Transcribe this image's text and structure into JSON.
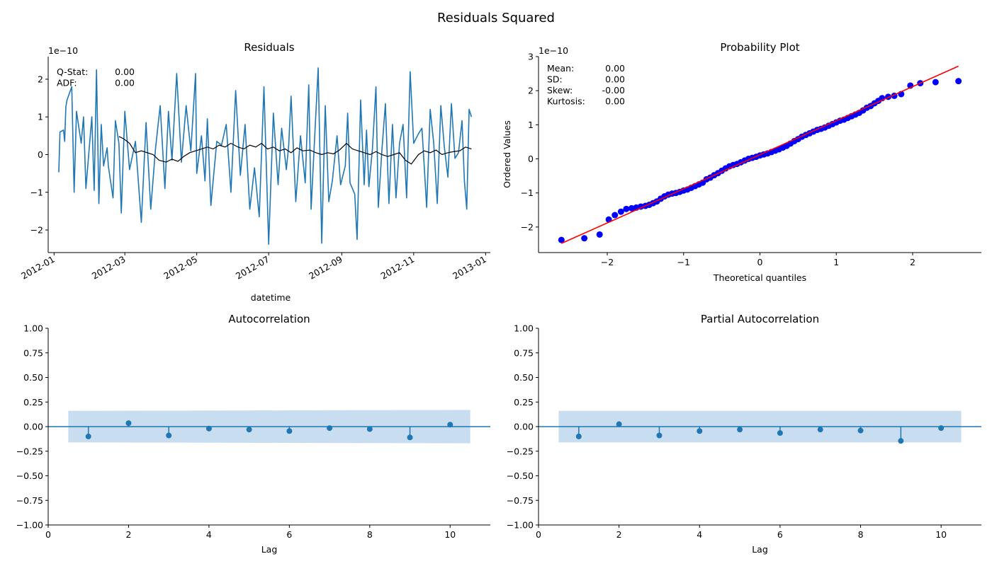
{
  "figure": {
    "title": "Residuals Squared"
  },
  "colors": {
    "residual_line": "#1f77b4",
    "rolling_mean": "#000000",
    "qq_points": "#0000ff",
    "qq_fit_line": "#ff0000",
    "stem": "#1f77b4",
    "confidence_band": "#c6dbef"
  },
  "chart_data": [
    {
      "id": "residuals",
      "type": "line",
      "title": "Residuals",
      "xlabel": "datetime",
      "ylabel": "",
      "scale_label": "1e−10",
      "x_tick_labels": [
        "2012-01",
        "2012-03",
        "2012-05",
        "2012-07",
        "2012-09",
        "2012-11",
        "2013-01"
      ],
      "x_tick_dates": [
        "2012-01-01",
        "2012-03-01",
        "2012-05-01",
        "2012-07-01",
        "2012-09-01",
        "2012-11-01",
        "2013-01-01"
      ],
      "xlim": [
        "2011-12-27",
        "2013-01-05"
      ],
      "yticks": [
        -2,
        -1,
        0,
        1,
        2
      ],
      "ylim": [
        -2.6,
        2.6
      ],
      "grid": false,
      "stats_text": [
        {
          "label": "Q-Stat:",
          "value": "0.00"
        },
        {
          "label": "ADF:",
          "value": "0.00"
        }
      ],
      "series": [
        {
          "kind": "residuals",
          "x": [
            "2012-01-05",
            "2012-01-06",
            "2012-01-09",
            "2012-01-10",
            "2012-01-11",
            "2012-01-12",
            "2012-01-16",
            "2012-01-18",
            "2012-01-20",
            "2012-01-24",
            "2012-01-26",
            "2012-01-28",
            "2012-02-02",
            "2012-02-04",
            "2012-02-06",
            "2012-02-08",
            "2012-02-10",
            "2012-02-12",
            "2012-02-15",
            "2012-02-16",
            "2012-02-20",
            "2012-02-22",
            "2012-02-25",
            "2012-02-27",
            "2012-03-01",
            "2012-03-05",
            "2012-03-10",
            "2012-03-15",
            "2012-03-19",
            "2012-03-23",
            "2012-03-27",
            "2012-03-31",
            "2012-04-04",
            "2012-04-07",
            "2012-04-10",
            "2012-04-14",
            "2012-04-18",
            "2012-04-22",
            "2012-04-26",
            "2012-04-30",
            "2012-05-01",
            "2012-05-05",
            "2012-05-08",
            "2012-05-10",
            "2012-05-13",
            "2012-05-18",
            "2012-05-22",
            "2012-05-26",
            "2012-05-30",
            "2012-06-03",
            "2012-06-07",
            "2012-06-11",
            "2012-06-15",
            "2012-06-19",
            "2012-06-23",
            "2012-06-27",
            "2012-07-01",
            "2012-07-05",
            "2012-07-09",
            "2012-07-12",
            "2012-07-16",
            "2012-07-18",
            "2012-07-20",
            "2012-07-24",
            "2012-07-28",
            "2012-08-01",
            "2012-08-04",
            "2012-08-06",
            "2012-08-09",
            "2012-08-12",
            "2012-08-15",
            "2012-08-18",
            "2012-08-21",
            "2012-08-24",
            "2012-08-28",
            "2012-08-31",
            "2012-09-04",
            "2012-09-06",
            "2012-09-08",
            "2012-09-12",
            "2012-09-14",
            "2012-09-17",
            "2012-09-20",
            "2012-09-22",
            "2012-09-24",
            "2012-09-27",
            "2012-09-30",
            "2012-10-02",
            "2012-10-05",
            "2012-10-08",
            "2012-10-11",
            "2012-10-14",
            "2012-10-17",
            "2012-10-20",
            "2012-10-23",
            "2012-10-26",
            "2012-10-29",
            "2012-11-01",
            "2012-11-05",
            "2012-11-08",
            "2012-11-12",
            "2012-11-15",
            "2012-11-18",
            "2012-11-21",
            "2012-11-24",
            "2012-11-27",
            "2012-11-30",
            "2012-12-03",
            "2012-12-06",
            "2012-12-09",
            "2012-12-12",
            "2012-12-14",
            "2012-12-16",
            "2012-12-18",
            "2012-12-20"
          ],
          "y": [
            -0.47,
            0.6,
            0.65,
            0.35,
            1.27,
            1.45,
            1.8,
            -1.0,
            1.15,
            0.3,
            1.0,
            -0.9,
            1.0,
            -0.95,
            2.25,
            -1.3,
            0.8,
            -0.3,
            0.18,
            -0.3,
            -1.15,
            0.9,
            0.3,
            -1.55,
            1.15,
            -0.4,
            0.35,
            -1.8,
            0.85,
            -1.45,
            0.15,
            1.3,
            -0.9,
            1.15,
            -0.15,
            2.15,
            -0.2,
            1.3,
            0.1,
            2.15,
            -0.5,
            0.5,
            -0.7,
            0.95,
            -1.35,
            0.35,
            0.25,
            0.8,
            -1.0,
            1.7,
            -0.55,
            0.8,
            -1.45,
            -0.35,
            -1.65,
            1.8,
            -2.38,
            1.1,
            -0.8,
            0.7,
            -0.4,
            0.25,
            1.55,
            -1.25,
            0.5,
            -0.75,
            1.85,
            -1.45,
            0.45,
            2.3,
            -2.35,
            1.3,
            -1.25,
            -0.7,
            0.5,
            -0.8,
            -0.3,
            1.1,
            -0.75,
            -1.05,
            -2.25,
            1.45,
            -0.8,
            0.65,
            -0.85,
            0.15,
            1.8,
            -1.4,
            0.1,
            1.35,
            -1.3,
            0.8,
            -1.15,
            0.3,
            0.8,
            -1.15,
            2.2,
            0.3,
            0.55,
            0.7,
            -1.4,
            1.2,
            0.3,
            -1.3,
            1.3,
            0.2,
            -0.6,
            1.35,
            -0.1,
            0.05,
            0.9,
            -0.7,
            -1.45,
            1.2,
            1.0
          ]
        },
        {
          "kind": "rolling_mean",
          "x": [
            "2012-02-25",
            "2012-02-29",
            "2012-03-05",
            "2012-03-10",
            "2012-03-15",
            "2012-03-20",
            "2012-03-25",
            "2012-03-30",
            "2012-04-05",
            "2012-04-10",
            "2012-04-15",
            "2012-04-20",
            "2012-04-25",
            "2012-04-30",
            "2012-05-05",
            "2012-05-10",
            "2012-05-15",
            "2012-05-20",
            "2012-05-25",
            "2012-05-30",
            "2012-06-05",
            "2012-06-10",
            "2012-06-15",
            "2012-06-20",
            "2012-06-25",
            "2012-06-30",
            "2012-07-05",
            "2012-07-10",
            "2012-07-15",
            "2012-07-20",
            "2012-07-25",
            "2012-07-30",
            "2012-08-05",
            "2012-08-10",
            "2012-08-15",
            "2012-08-20",
            "2012-08-25",
            "2012-08-30",
            "2012-09-05",
            "2012-09-10",
            "2012-09-15",
            "2012-09-20",
            "2012-09-25",
            "2012-09-30",
            "2012-10-05",
            "2012-10-10",
            "2012-10-15",
            "2012-10-20",
            "2012-10-25",
            "2012-10-30",
            "2012-11-05",
            "2012-11-10",
            "2012-11-15",
            "2012-11-20",
            "2012-11-25",
            "2012-11-30",
            "2012-12-05",
            "2012-12-10",
            "2012-12-15",
            "2012-12-20"
          ],
          "y": [
            0.48,
            0.42,
            0.3,
            0.05,
            0.1,
            0.05,
            0.0,
            -0.15,
            -0.2,
            -0.12,
            -0.18,
            -0.05,
            0.05,
            0.1,
            0.15,
            0.2,
            0.15,
            0.25,
            0.2,
            0.3,
            0.2,
            0.15,
            0.25,
            0.2,
            0.3,
            0.15,
            0.2,
            0.1,
            0.15,
            0.05,
            0.18,
            0.1,
            0.12,
            0.05,
            0.0,
            0.05,
            0.02,
            0.12,
            0.3,
            0.15,
            0.1,
            0.05,
            0.0,
            0.08,
            0.0,
            -0.05,
            0.0,
            0.05,
            -0.15,
            -0.25,
            0.0,
            0.1,
            0.05,
            0.12,
            0.0,
            0.05,
            0.08,
            0.1,
            0.2,
            0.15
          ]
        }
      ]
    },
    {
      "id": "probability_plot",
      "type": "scatter",
      "title": "Probability Plot",
      "xlabel": "Theoretical quantiles",
      "ylabel": "Ordered Values",
      "scale_label": "1e−10",
      "xticks": [
        -2,
        -1,
        0,
        1,
        2
      ],
      "xlim": [
        -2.9,
        2.9
      ],
      "yticks": [
        -2,
        -1,
        0,
        1,
        2,
        3
      ],
      "ylim": [
        -2.75,
        3.0
      ],
      "grid": false,
      "stats_text": [
        {
          "label": "Mean:",
          "value": "0.00"
        },
        {
          "label": "SD:",
          "value": "0.00"
        },
        {
          "label": "Skew:",
          "value": "-0.00"
        },
        {
          "label": "Kurtosis:",
          "value": "0.00"
        }
      ],
      "fit_line": {
        "slope": 1.0,
        "intercept": 0.12
      },
      "points": {
        "x": [
          -2.6,
          -2.3,
          -2.1,
          -1.98,
          -1.9,
          -1.82,
          -1.75,
          -1.68,
          -1.62,
          -1.56,
          -1.5,
          -1.45,
          -1.4,
          -1.35,
          -1.3,
          -1.25,
          -1.2,
          -1.15,
          -1.1,
          -1.05,
          -1.0,
          -0.95,
          -0.9,
          -0.85,
          -0.8,
          -0.75,
          -0.7,
          -0.65,
          -0.6,
          -0.55,
          -0.5,
          -0.45,
          -0.4,
          -0.35,
          -0.3,
          -0.25,
          -0.2,
          -0.15,
          -0.1,
          -0.05,
          0.0,
          0.05,
          0.1,
          0.15,
          0.2,
          0.25,
          0.3,
          0.35,
          0.4,
          0.45,
          0.5,
          0.55,
          0.6,
          0.65,
          0.7,
          0.75,
          0.8,
          0.85,
          0.9,
          0.95,
          1.0,
          1.05,
          1.1,
          1.15,
          1.2,
          1.25,
          1.3,
          1.35,
          1.4,
          1.45,
          1.5,
          1.55,
          1.6,
          1.68,
          1.76,
          1.85,
          1.97,
          2.1,
          2.3,
          2.6
        ],
        "y": [
          -2.38,
          -2.33,
          -2.22,
          -1.78,
          -1.65,
          -1.55,
          -1.47,
          -1.45,
          -1.43,
          -1.4,
          -1.38,
          -1.35,
          -1.3,
          -1.25,
          -1.17,
          -1.1,
          -1.05,
          -1.02,
          -1.0,
          -0.97,
          -0.93,
          -0.9,
          -0.85,
          -0.8,
          -0.75,
          -0.7,
          -0.6,
          -0.55,
          -0.48,
          -0.42,
          -0.35,
          -0.28,
          -0.22,
          -0.18,
          -0.15,
          -0.1,
          -0.05,
          0.0,
          0.03,
          0.06,
          0.1,
          0.13,
          0.16,
          0.2,
          0.24,
          0.28,
          0.33,
          0.38,
          0.45,
          0.52,
          0.58,
          0.65,
          0.7,
          0.75,
          0.8,
          0.85,
          0.88,
          0.92,
          0.97,
          1.02,
          1.07,
          1.12,
          1.15,
          1.2,
          1.25,
          1.3,
          1.35,
          1.42,
          1.5,
          1.55,
          1.63,
          1.7,
          1.78,
          1.82,
          1.85,
          1.9,
          2.15,
          2.22,
          2.25,
          2.28
        ]
      }
    },
    {
      "id": "acf",
      "type": "scatter",
      "title": "Autocorrelation",
      "xlabel": "Lag",
      "ylabel": "",
      "xticks": [
        0,
        2,
        4,
        6,
        8,
        10
      ],
      "xlim": [
        0,
        11
      ],
      "yticks": [
        -1.0,
        -0.75,
        -0.5,
        -0.25,
        0.0,
        0.25,
        0.5,
        0.75,
        1.0
      ],
      "ytick_labels": [
        "−1.00",
        "−0.75",
        "−0.50",
        "−0.25",
        "0.00",
        "0.25",
        "0.50",
        "0.75",
        "1.00"
      ],
      "ylim": [
        -1.0,
        1.0
      ],
      "grid": false,
      "confidence_band": {
        "x": [
          0.5,
          10.5
        ],
        "lower": [
          -0.16,
          -0.17
        ],
        "upper": [
          0.16,
          0.17
        ]
      },
      "lags": [
        1,
        2,
        3,
        4,
        5,
        6,
        7,
        8,
        9,
        10
      ],
      "values": [
        -0.1,
        0.035,
        -0.09,
        -0.02,
        -0.03,
        -0.045,
        -0.015,
        -0.025,
        -0.11,
        0.02
      ]
    },
    {
      "id": "pacf",
      "type": "scatter",
      "title": "Partial Autocorrelation",
      "xlabel": "Lag",
      "ylabel": "",
      "xticks": [
        0,
        2,
        4,
        6,
        8,
        10
      ],
      "xlim": [
        0,
        11
      ],
      "yticks": [
        -1.0,
        -0.75,
        -0.5,
        -0.25,
        0.0,
        0.25,
        0.5,
        0.75,
        1.0
      ],
      "ytick_labels": [
        "−1.00",
        "−0.75",
        "−0.50",
        "−0.25",
        "0.00",
        "0.25",
        "0.50",
        "0.75",
        "1.00"
      ],
      "ylim": [
        -1.0,
        1.0
      ],
      "grid": false,
      "confidence_band": {
        "x": [
          0.5,
          10.5
        ],
        "lower": [
          -0.16,
          -0.16
        ],
        "upper": [
          0.16,
          0.16
        ]
      },
      "lags": [
        1,
        2,
        3,
        4,
        5,
        6,
        7,
        8,
        9,
        10
      ],
      "values": [
        -0.1,
        0.025,
        -0.09,
        -0.045,
        -0.03,
        -0.065,
        -0.03,
        -0.04,
        -0.145,
        -0.015
      ]
    }
  ]
}
